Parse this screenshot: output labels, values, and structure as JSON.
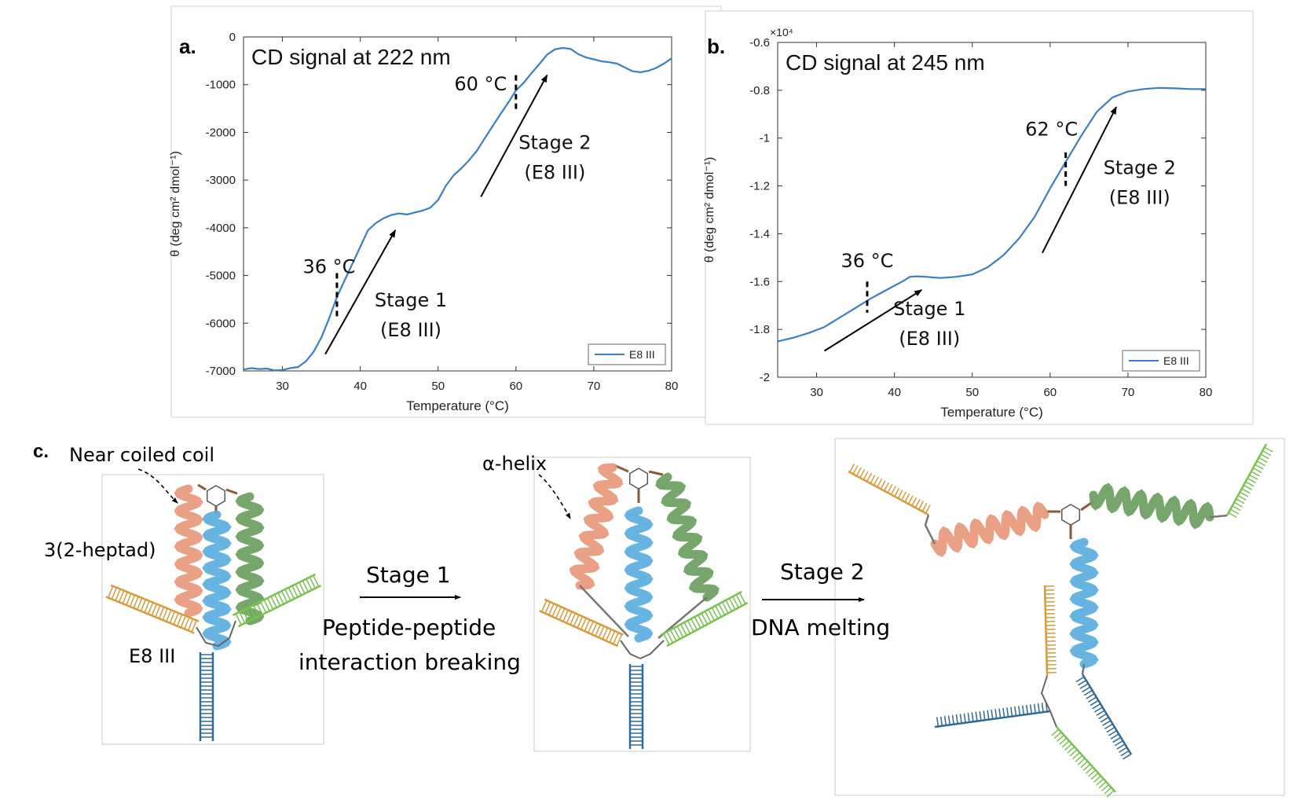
{
  "panel_labels": {
    "a": "a.",
    "b": "b.",
    "c": "c."
  },
  "chart_data": [
    {
      "type": "line",
      "panel": "a.",
      "title": "CD signal at 222 nm",
      "xlabel": "Temperature (°C)",
      "ylabel": "θ (deg cm² dmol⁻¹)",
      "xlim": [
        25,
        80
      ],
      "ylim": [
        -7000,
        0
      ],
      "xticks": [
        30,
        40,
        50,
        60,
        70,
        80
      ],
      "yticks": [
        0,
        -1000,
        -2000,
        -3000,
        -4000,
        -5000,
        -6000,
        -7000
      ],
      "ytick_labels": [
        "0",
        "-1000",
        "-2000",
        "-3000",
        "-4000",
        "-5000",
        "-6000",
        "-7000"
      ],
      "grid": false,
      "legend_position": "bottom-right",
      "series": [
        {
          "name": "E8 III",
          "color": "#3a7fc4",
          "x": [
            25,
            26,
            27,
            28,
            29,
            30,
            31,
            32,
            33,
            34,
            35,
            36,
            37,
            38,
            39,
            40,
            41,
            42,
            43,
            44,
            45,
            46,
            47,
            48,
            49,
            50,
            51,
            52,
            53,
            54,
            55,
            56,
            57,
            58,
            59,
            60,
            61,
            62,
            63,
            64,
            65,
            66,
            67,
            68,
            69,
            70,
            71,
            72,
            73,
            74,
            75,
            76,
            77,
            78,
            79,
            80
          ],
          "y": [
            -6970,
            -6940,
            -6960,
            -6950,
            -6990,
            -6980,
            -6940,
            -6920,
            -6800,
            -6600,
            -6300,
            -5900,
            -5450,
            -5100,
            -4750,
            -4400,
            -4050,
            -3900,
            -3800,
            -3730,
            -3700,
            -3720,
            -3680,
            -3640,
            -3580,
            -3420,
            -3120,
            -2900,
            -2750,
            -2580,
            -2380,
            -2120,
            -1870,
            -1620,
            -1380,
            -1120,
            -960,
            -760,
            -570,
            -370,
            -260,
            -230,
            -250,
            -360,
            -430,
            -470,
            -510,
            -530,
            -560,
            -640,
            -720,
            -740,
            -710,
            -650,
            -560,
            -450
          ]
        }
      ],
      "annotations": [
        {
          "text": "36 °C",
          "x": 37
        },
        {
          "text": "60 °C",
          "x": 60
        },
        {
          "text": "Stage 1",
          "subtext": "(E8 III)"
        },
        {
          "text": "Stage 2",
          "subtext": "(E8 III)"
        }
      ]
    },
    {
      "type": "line",
      "panel": "b.",
      "title": "CD signal at 245 nm",
      "xlabel": "Temperature (°C)",
      "ylabel": "θ (deg cm² dmol⁻¹)",
      "y_multiplier": "×10⁴",
      "xlim": [
        25,
        80
      ],
      "ylim": [
        -2.0,
        -0.6
      ],
      "xticks": [
        30,
        40,
        50,
        60,
        70,
        80
      ],
      "yticks": [
        -0.6,
        -0.8,
        -1.0,
        -1.2,
        -1.4,
        -1.6,
        -1.8,
        -2.0
      ],
      "ytick_labels": [
        "-0.6",
        "-0.8",
        "-1",
        "-1.2",
        "-1.4",
        "-1.6",
        "-1.8",
        "-2"
      ],
      "grid": false,
      "legend_position": "bottom-right",
      "series": [
        {
          "name": "E8 III",
          "color": "#3a7fc4",
          "x": [
            25,
            27,
            29,
            31,
            33,
            35,
            37,
            39,
            41,
            42,
            43,
            44,
            45,
            46,
            48,
            50,
            52,
            54,
            56,
            58,
            60,
            62,
            64,
            66,
            68,
            70,
            72,
            74,
            76,
            78,
            80
          ],
          "y": [
            -1.85,
            -1.835,
            -1.815,
            -1.79,
            -1.75,
            -1.71,
            -1.67,
            -1.635,
            -1.6,
            -1.58,
            -1.578,
            -1.58,
            -1.583,
            -1.585,
            -1.58,
            -1.57,
            -1.54,
            -1.49,
            -1.42,
            -1.33,
            -1.21,
            -1.1,
            -0.99,
            -0.89,
            -0.83,
            -0.805,
            -0.795,
            -0.79,
            -0.792,
            -0.795,
            -0.795
          ]
        }
      ],
      "annotations": [
        {
          "text": "36 °C",
          "x": 36.5
        },
        {
          "text": "62 °C",
          "x": 62
        },
        {
          "text": "Stage 1",
          "subtext": "(E8 III)"
        },
        {
          "text": "Stage 2",
          "subtext": "(E8 III)"
        }
      ]
    }
  ],
  "schematic": {
    "near_coiled_coil": "Near coiled coil",
    "heptad": "3(2-heptad)",
    "construct": "E8 III",
    "alpha_helix": "α-helix",
    "stage1": "Stage 1",
    "stage1_desc_line1": "Peptide-peptide",
    "stage1_desc_line2": "interaction breaking",
    "stage2": "Stage 2",
    "stage2_desc": "DNA melting",
    "colors": {
      "helix_orange": "#e8987a",
      "helix_blue": "#5aaee0",
      "helix_green": "#6a9e5e",
      "dna_orange": "#d89a3a",
      "dna_green": "#78c24e",
      "dna_blue": "#2f6a9a",
      "linker": "#8a5a3a"
    }
  }
}
